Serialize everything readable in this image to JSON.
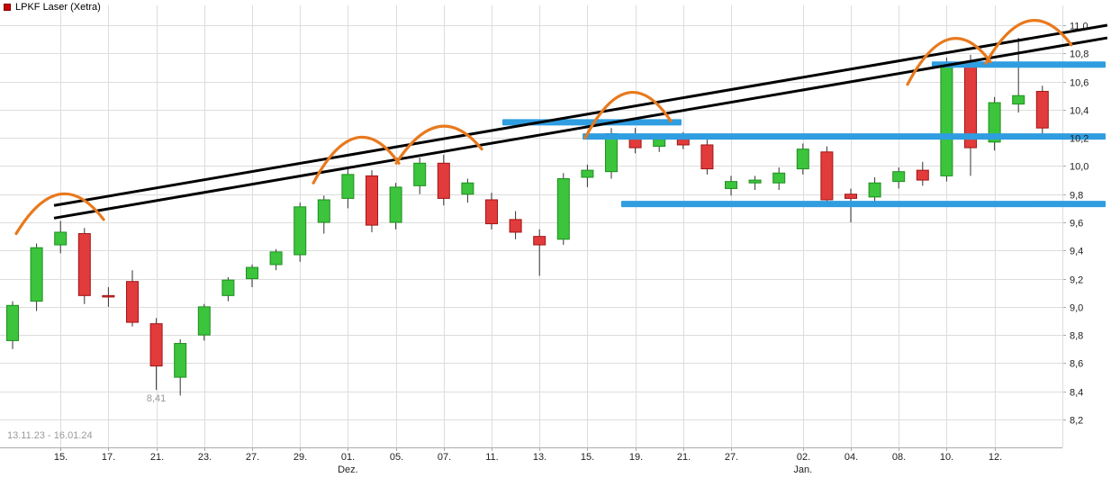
{
  "header": {
    "title": "LPKF Laser (Xetra)"
  },
  "footer": {
    "date_range": "13.11.23 - 16.01.24"
  },
  "colors": {
    "legend_marker": "#cc0000",
    "candle_up_fill": "#3cc43c",
    "candle_up_border": "#1f8f1f",
    "candle_down_fill": "#e23b3b",
    "candle_down_border": "#a01616",
    "wick": "#333333",
    "grid": "#dddddd",
    "axis": "#aaaaaa",
    "tick_text": "#222222",
    "muted_text": "#999999",
    "trendline": "#000000",
    "level_bar": "#2f9de0",
    "arc": "#e8791d"
  },
  "chart_data": {
    "type": "candlestick",
    "title": "LPKF Laser (Xetra)",
    "date_range": "13.11.23 - 16.01.24",
    "y_axis": {
      "side": "right",
      "min": 8.2,
      "max": 11.0,
      "step": 0.2,
      "labels": [
        "11,0",
        "10,8",
        "10,6",
        "10,4",
        "10,2",
        "10,0",
        "9,8",
        "9,6",
        "9,4",
        "9,2",
        "9,0",
        "8,8",
        "8,6",
        "8,4",
        "8,2"
      ]
    },
    "x_axis": {
      "ticks": [
        {
          "label": "15.",
          "index": 2
        },
        {
          "label": "17.",
          "index": 4
        },
        {
          "label": "21.",
          "index": 6
        },
        {
          "label": "23.",
          "index": 8
        },
        {
          "label": "27.",
          "index": 10
        },
        {
          "label": "29.",
          "index": 12
        },
        {
          "label": "01.",
          "index": 14
        },
        {
          "label": "05.",
          "index": 16
        },
        {
          "label": "07.",
          "index": 18
        },
        {
          "label": "11.",
          "index": 20
        },
        {
          "label": "13.",
          "index": 22
        },
        {
          "label": "15.",
          "index": 24
        },
        {
          "label": "19.",
          "index": 26
        },
        {
          "label": "21.",
          "index": 28
        },
        {
          "label": "27.",
          "index": 30
        },
        {
          "label": "02.",
          "index": 33
        },
        {
          "label": "04.",
          "index": 35
        },
        {
          "label": "08.",
          "index": 37
        },
        {
          "label": "10.",
          "index": 39
        },
        {
          "label": "12.",
          "index": 41
        }
      ],
      "month_labels": [
        {
          "label": "Dez.",
          "index": 14
        },
        {
          "label": "Jan.",
          "index": 33
        }
      ]
    },
    "candles": [
      {
        "date": "13.11.",
        "o": 8.76,
        "h": 9.04,
        "l": 8.7,
        "c": 9.01
      },
      {
        "date": "14.11.",
        "o": 9.04,
        "h": 9.45,
        "l": 8.97,
        "c": 9.42
      },
      {
        "date": "15.11.",
        "o": 9.44,
        "h": 9.61,
        "l": 9.38,
        "c": 9.53
      },
      {
        "date": "16.11.",
        "o": 9.52,
        "h": 9.56,
        "l": 9.02,
        "c": 9.08
      },
      {
        "date": "17.11.",
        "o": 9.08,
        "h": 9.14,
        "l": 9.0,
        "c": 9.07
      },
      {
        "date": "20.11.",
        "o": 9.18,
        "h": 9.26,
        "l": 8.86,
        "c": 8.89
      },
      {
        "date": "21.11.",
        "o": 8.88,
        "h": 8.92,
        "l": 8.41,
        "c": 8.58
      },
      {
        "date": "22.11.",
        "o": 8.5,
        "h": 8.77,
        "l": 8.37,
        "c": 8.74
      },
      {
        "date": "23.11.",
        "o": 8.8,
        "h": 9.02,
        "l": 8.76,
        "c": 9.0
      },
      {
        "date": "24.11.",
        "o": 9.08,
        "h": 9.21,
        "l": 9.04,
        "c": 9.19
      },
      {
        "date": "27.11.",
        "o": 9.2,
        "h": 9.3,
        "l": 9.14,
        "c": 9.28
      },
      {
        "date": "28.11.",
        "o": 9.3,
        "h": 9.41,
        "l": 9.26,
        "c": 9.39
      },
      {
        "date": "29.11.",
        "o": 9.37,
        "h": 9.74,
        "l": 9.32,
        "c": 9.71
      },
      {
        "date": "30.11.",
        "o": 9.6,
        "h": 9.79,
        "l": 9.52,
        "c": 9.76
      },
      {
        "date": "01.12.",
        "o": 9.77,
        "h": 9.99,
        "l": 9.7,
        "c": 9.94
      },
      {
        "date": "04.12.",
        "o": 9.93,
        "h": 9.97,
        "l": 9.53,
        "c": 9.58
      },
      {
        "date": "05.12.",
        "o": 9.6,
        "h": 9.88,
        "l": 9.55,
        "c": 9.85
      },
      {
        "date": "06.12.",
        "o": 9.86,
        "h": 10.06,
        "l": 9.8,
        "c": 10.02
      },
      {
        "date": "07.12.",
        "o": 10.02,
        "h": 10.08,
        "l": 9.72,
        "c": 9.77
      },
      {
        "date": "08.12.",
        "o": 9.8,
        "h": 9.91,
        "l": 9.74,
        "c": 9.88
      },
      {
        "date": "11.12.",
        "o": 9.76,
        "h": 9.81,
        "l": 9.55,
        "c": 9.59
      },
      {
        "date": "12.12.",
        "o": 9.62,
        "h": 9.68,
        "l": 9.48,
        "c": 9.53
      },
      {
        "date": "13.12.",
        "o": 9.5,
        "h": 9.55,
        "l": 9.22,
        "c": 9.44
      },
      {
        "date": "14.12.",
        "o": 9.48,
        "h": 9.95,
        "l": 9.44,
        "c": 9.91
      },
      {
        "date": "15.12.",
        "o": 9.92,
        "h": 10.01,
        "l": 9.85,
        "c": 9.97
      },
      {
        "date": "18.12.",
        "o": 9.96,
        "h": 10.27,
        "l": 9.91,
        "c": 10.23
      },
      {
        "date": "19.12.",
        "o": 10.22,
        "h": 10.27,
        "l": 10.09,
        "c": 10.13
      },
      {
        "date": "20.12.",
        "o": 10.14,
        "h": 10.22,
        "l": 10.1,
        "c": 10.19
      },
      {
        "date": "21.12.",
        "o": 10.19,
        "h": 10.24,
        "l": 10.12,
        "c": 10.15
      },
      {
        "date": "22.12.",
        "o": 10.15,
        "h": 10.2,
        "l": 9.94,
        "c": 9.98
      },
      {
        "date": "27.12.",
        "o": 9.84,
        "h": 9.93,
        "l": 9.79,
        "c": 9.89
      },
      {
        "date": "28.12.",
        "o": 9.88,
        "h": 9.93,
        "l": 9.83,
        "c": 9.9
      },
      {
        "date": "29.12.",
        "o": 9.88,
        "h": 9.99,
        "l": 9.83,
        "c": 9.95
      },
      {
        "date": "02.01.",
        "o": 9.98,
        "h": 10.16,
        "l": 9.94,
        "c": 10.12
      },
      {
        "date": "03.01.",
        "o": 10.1,
        "h": 10.14,
        "l": 9.72,
        "c": 9.76
      },
      {
        "date": "04.01.",
        "o": 9.8,
        "h": 9.84,
        "l": 9.6,
        "c": 9.77
      },
      {
        "date": "05.01.",
        "o": 9.78,
        "h": 9.92,
        "l": 9.73,
        "c": 9.88
      },
      {
        "date": "08.01.",
        "o": 9.89,
        "h": 9.99,
        "l": 9.84,
        "c": 9.96
      },
      {
        "date": "09.01.",
        "o": 9.97,
        "h": 10.03,
        "l": 9.86,
        "c": 9.9
      },
      {
        "date": "10.01.",
        "o": 9.93,
        "h": 10.77,
        "l": 9.89,
        "c": 10.73
      },
      {
        "date": "11.01.",
        "o": 10.73,
        "h": 10.79,
        "l": 9.93,
        "c": 10.13
      },
      {
        "date": "12.01.",
        "o": 10.17,
        "h": 10.49,
        "l": 10.11,
        "c": 10.45
      },
      {
        "date": "15.01.",
        "o": 10.44,
        "h": 10.91,
        "l": 10.38,
        "c": 10.5
      },
      {
        "date": "16.01.",
        "o": 10.53,
        "h": 10.57,
        "l": 10.23,
        "c": 10.27
      }
    ],
    "annotation": {
      "text": "8,41",
      "candle_index": 6,
      "price": 8.41
    },
    "trendlines": [
      {
        "i1": 1.73,
        "p1": 9.72,
        "i2": 45.71,
        "p2": 11.0
      },
      {
        "i1": 1.73,
        "p1": 9.63,
        "i2": 45.71,
        "p2": 10.91
      }
    ],
    "level_bars": [
      {
        "price": 10.31,
        "i1": 20.45,
        "i2": 27.93
      },
      {
        "price": 10.21,
        "i1": 23.8,
        "i2": 45.64
      },
      {
        "price": 9.73,
        "i1": 25.41,
        "i2": 45.64
      },
      {
        "price": 10.72,
        "i1": 38.38,
        "i2": 45.64
      }
    ],
    "arcs": [
      {
        "i1": 0.15,
        "p1": 9.52,
        "apex": 9.8,
        "i2": 3.8,
        "p2": 9.62
      },
      {
        "i1": 12.56,
        "p1": 9.88,
        "apex": 10.2,
        "i2": 16.13,
        "p2": 10.02
      },
      {
        "i1": 16.02,
        "p1": 10.02,
        "apex": 10.28,
        "i2": 19.59,
        "p2": 10.12
      },
      {
        "i1": 23.91,
        "p1": 10.2,
        "apex": 10.52,
        "i2": 27.48,
        "p2": 10.32
      },
      {
        "i1": 37.37,
        "p1": 10.58,
        "apex": 10.9,
        "i2": 40.83,
        "p2": 10.74
      },
      {
        "i1": 40.64,
        "p1": 10.73,
        "apex": 11.03,
        "i2": 44.21,
        "p2": 10.86
      }
    ]
  }
}
